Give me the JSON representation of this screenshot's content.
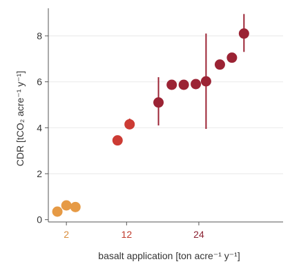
{
  "chart_data": {
    "type": "scatter",
    "xlabel": "basalt application [ton acre⁻¹ y⁻¹]",
    "ylabel": "CDR [tCO₂ acre⁻¹ y⁻¹]",
    "xlim": [
      -1,
      38
    ],
    "ylim": [
      -0.1,
      9.2
    ],
    "grid": true,
    "x_ticks": [
      2,
      12,
      24
    ],
    "x_tick_labels": [
      "2",
      "12",
      "24"
    ],
    "x_tick_colors": [
      "#d98c3a",
      "#c0392b",
      "#8b2232"
    ],
    "y_ticks": [
      0,
      2,
      4,
      6,
      8
    ],
    "y_tick_labels": [
      "0",
      "2",
      "4",
      "6",
      "8"
    ],
    "series": [
      {
        "color": "#e69a45",
        "points": [
          {
            "x": 0.5,
            "y": 0.35
          },
          {
            "x": 2.0,
            "y": 0.62
          },
          {
            "x": 3.5,
            "y": 0.55
          }
        ]
      },
      {
        "color": "#cc3b34",
        "points": [
          {
            "x": 10.5,
            "y": 3.45
          },
          {
            "x": 12.5,
            "y": 4.15,
            "err_low": 3.95,
            "err_high": 4.4
          }
        ]
      },
      {
        "color": "#9b2334",
        "points": [
          {
            "x": 17.3,
            "y": 5.1,
            "err_low": 4.1,
            "err_high": 6.2
          },
          {
            "x": 19.5,
            "y": 5.87
          },
          {
            "x": 21.5,
            "y": 5.87
          },
          {
            "x": 23.5,
            "y": 5.9
          },
          {
            "x": 25.2,
            "y": 6.02,
            "err_low": 3.95,
            "err_high": 8.1
          },
          {
            "x": 27.5,
            "y": 6.75
          },
          {
            "x": 29.5,
            "y": 7.05
          },
          {
            "x": 31.5,
            "y": 8.1,
            "err_low": 7.3,
            "err_high": 8.95
          }
        ]
      }
    ]
  }
}
